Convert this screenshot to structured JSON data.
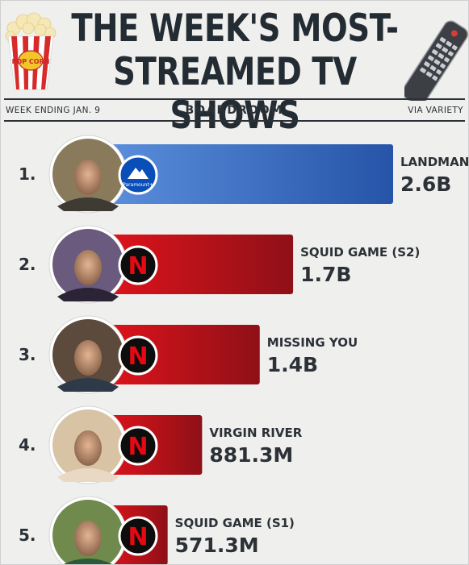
{
  "header": {
    "title_line1": "THE WEEK'S MOST-",
    "title_line2": "STREAMED TV SHOWS",
    "week": "WEEK ENDING JAN. 9",
    "brand": "BOARDROOM",
    "source": "VIA VARIETY",
    "popcorn_text": "POP CORN"
  },
  "colors": {
    "background": "#efefed",
    "text": "#2c3138",
    "paramount_bar": "#2f62b8",
    "netflix_bar": "#b5141b",
    "netflix_logo": "#e50914"
  },
  "chart_data": {
    "type": "bar",
    "orientation": "horizontal",
    "title": "THE WEEK'S MOST-STREAMED TV SHOWS",
    "unit": "views",
    "grid": false,
    "bars": [
      {
        "rank": "1.",
        "name": "LANDMAN",
        "value": 2.6,
        "value_label": "2.6B",
        "platform": "paramount-plus",
        "platform_text": "Paramount+"
      },
      {
        "rank": "2.",
        "name": "SQUID GAME (S2)",
        "value": 1.7,
        "value_label": "1.7B",
        "platform": "netflix",
        "platform_text": "N"
      },
      {
        "rank": "3.",
        "name": "MISSING YOU",
        "value": 1.4,
        "value_label": "1.4B",
        "platform": "netflix",
        "platform_text": "N"
      },
      {
        "rank": "4.",
        "name": "VIRGIN RIVER",
        "value": 0.8813,
        "value_label": "881.3M",
        "platform": "netflix",
        "platform_text": "N"
      },
      {
        "rank": "5.",
        "name": "SQUID GAME (S1)",
        "value": 0.5713,
        "value_label": "571.3M",
        "platform": "netflix",
        "platform_text": "N"
      }
    ]
  }
}
